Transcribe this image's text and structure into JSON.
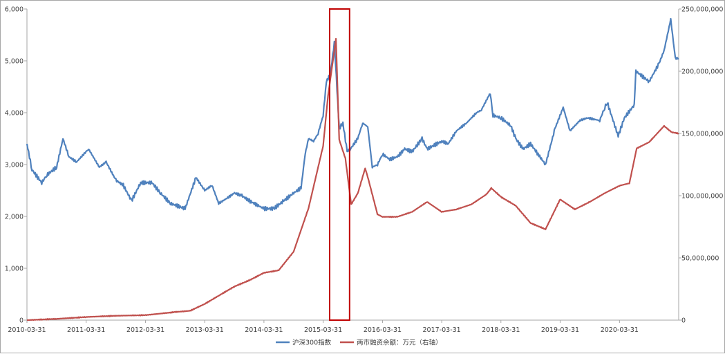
{
  "chart_data": {
    "type": "line",
    "x_ticks": [
      "2010-03-31",
      "2011-03-31",
      "2012-03-31",
      "2013-03-31",
      "2014-03-31",
      "2015-03-31",
      "2016-03-31",
      "2017-03-31",
      "2018-03-31",
      "2019-03-31",
      "2020-03-31"
    ],
    "y_left": {
      "range": [
        0,
        6000
      ],
      "ticks": [
        0,
        1000,
        2000,
        3000,
        4000,
        5000,
        6000
      ],
      "tick_labels": [
        "0",
        "1,000",
        "2,000",
        "3,000",
        "4,000",
        "5,000",
        "6,000"
      ]
    },
    "y_right": {
      "range": [
        0,
        250000000
      ],
      "ticks": [
        0,
        50000000,
        100000000,
        150000000,
        200000000,
        250000000
      ],
      "tick_labels": [
        "0",
        "50,000,000",
        "100,000,000",
        "150,000,000",
        "200,000,000",
        "250,000,000"
      ]
    },
    "series": [
      {
        "name": "沪深300指数",
        "axis": "left",
        "color": "#4f81bd",
        "points": [
          [
            "2010-03-31",
            3400
          ],
          [
            "2010-05-01",
            2900
          ],
          [
            "2010-06-30",
            2650
          ],
          [
            "2010-08-01",
            2800
          ],
          [
            "2010-09-30",
            2950
          ],
          [
            "2010-11-08",
            3500
          ],
          [
            "2010-12-15",
            3150
          ],
          [
            "2011-01-31",
            3050
          ],
          [
            "2011-04-15",
            3300
          ],
          [
            "2011-06-20",
            2950
          ],
          [
            "2011-08-01",
            3050
          ],
          [
            "2011-09-30",
            2700
          ],
          [
            "2011-11-15",
            2600
          ],
          [
            "2012-01-05",
            2300
          ],
          [
            "2012-03-01",
            2650
          ],
          [
            "2012-05-10",
            2650
          ],
          [
            "2012-07-01",
            2450
          ],
          [
            "2012-09-01",
            2250
          ],
          [
            "2012-11-30",
            2150
          ],
          [
            "2013-02-05",
            2750
          ],
          [
            "2013-03-31",
            2500
          ],
          [
            "2013-05-15",
            2600
          ],
          [
            "2013-06-25",
            2250
          ],
          [
            "2013-08-15",
            2350
          ],
          [
            "2013-09-30",
            2450
          ],
          [
            "2013-11-15",
            2400
          ],
          [
            "2013-12-31",
            2300
          ],
          [
            "2014-03-31",
            2150
          ],
          [
            "2014-05-31",
            2150
          ],
          [
            "2014-07-31",
            2300
          ],
          [
            "2014-09-30",
            2450
          ],
          [
            "2014-11-15",
            2550
          ],
          [
            "2014-12-10",
            3200
          ],
          [
            "2014-12-31",
            3500
          ],
          [
            "2015-01-31",
            3450
          ],
          [
            "2015-02-28",
            3600
          ],
          [
            "2015-03-31",
            3950
          ],
          [
            "2015-04-20",
            4600
          ],
          [
            "2015-05-15",
            4750
          ],
          [
            "2015-06-08",
            5350
          ],
          [
            "2015-06-20",
            4700
          ],
          [
            "2015-07-08",
            3700
          ],
          [
            "2015-07-31",
            3800
          ],
          [
            "2015-08-26",
            3250
          ],
          [
            "2015-09-15",
            3300
          ],
          [
            "2015-10-30",
            3500
          ],
          [
            "2015-11-30",
            3800
          ],
          [
            "2015-12-31",
            3730
          ],
          [
            "2016-01-28",
            2950
          ],
          [
            "2016-02-29",
            3000
          ],
          [
            "2016-03-31",
            3200
          ],
          [
            "2016-05-15",
            3100
          ],
          [
            "2016-07-01",
            3150
          ],
          [
            "2016-08-15",
            3300
          ],
          [
            "2016-09-30",
            3250
          ],
          [
            "2016-11-30",
            3500
          ],
          [
            "2016-12-31",
            3300
          ],
          [
            "2017-03-31",
            3450
          ],
          [
            "2017-05-10",
            3400
          ],
          [
            "2017-06-30",
            3650
          ],
          [
            "2017-08-31",
            3800
          ],
          [
            "2017-10-31",
            4000
          ],
          [
            "2017-11-30",
            4050
          ],
          [
            "2018-01-24",
            4380
          ],
          [
            "2018-02-10",
            3950
          ],
          [
            "2018-03-31",
            3900
          ],
          [
            "2018-05-31",
            3750
          ],
          [
            "2018-06-30",
            3500
          ],
          [
            "2018-08-15",
            3300
          ],
          [
            "2018-09-30",
            3400
          ],
          [
            "2018-11-15",
            3200
          ],
          [
            "2018-12-31",
            3000
          ],
          [
            "2019-02-28",
            3700
          ],
          [
            "2019-04-19",
            4100
          ],
          [
            "2019-05-31",
            3650
          ],
          [
            "2019-07-31",
            3850
          ],
          [
            "2019-09-15",
            3900
          ],
          [
            "2019-11-30",
            3850
          ],
          [
            "2019-12-31",
            4100
          ],
          [
            "2020-01-15",
            4200
          ],
          [
            "2020-03-23",
            3550
          ],
          [
            "2020-04-30",
            3900
          ],
          [
            "2020-06-30",
            4150
          ],
          [
            "2020-07-10",
            4800
          ],
          [
            "2020-09-30",
            4600
          ],
          [
            "2020-11-30",
            4950
          ],
          [
            "2020-12-31",
            5200
          ],
          [
            "2021-02-10",
            5800
          ],
          [
            "2021-03-10",
            5050
          ],
          [
            "2021-03-31",
            5050
          ]
        ]
      },
      {
        "name": "两市融资余额：万元（右轴）",
        "axis": "right",
        "color": "#c0504d",
        "points": [
          [
            "2010-03-31",
            0
          ],
          [
            "2010-09-30",
            1000000
          ],
          [
            "2011-03-31",
            2500000
          ],
          [
            "2011-09-30",
            3500000
          ],
          [
            "2012-03-31",
            4000000
          ],
          [
            "2012-09-30",
            6500000
          ],
          [
            "2012-12-31",
            7500000
          ],
          [
            "2013-03-31",
            13000000
          ],
          [
            "2013-06-30",
            20000000
          ],
          [
            "2013-09-30",
            27000000
          ],
          [
            "2013-12-31",
            32000000
          ],
          [
            "2014-03-31",
            38000000
          ],
          [
            "2014-06-30",
            40000000
          ],
          [
            "2014-09-30",
            55000000
          ],
          [
            "2014-12-31",
            90000000
          ],
          [
            "2015-03-31",
            140000000
          ],
          [
            "2015-04-30",
            180000000
          ],
          [
            "2015-06-18",
            226000000
          ],
          [
            "2015-07-08",
            145000000
          ],
          [
            "2015-08-15",
            130000000
          ],
          [
            "2015-09-20",
            93000000
          ],
          [
            "2015-10-31",
            102000000
          ],
          [
            "2015-12-15",
            122000000
          ],
          [
            "2015-12-31",
            115000000
          ],
          [
            "2016-02-29",
            85000000
          ],
          [
            "2016-03-31",
            83000000
          ],
          [
            "2016-06-30",
            83000000
          ],
          [
            "2016-09-30",
            87000000
          ],
          [
            "2016-12-31",
            95000000
          ],
          [
            "2017-03-31",
            87000000
          ],
          [
            "2017-06-30",
            89000000
          ],
          [
            "2017-09-30",
            93000000
          ],
          [
            "2017-12-31",
            101000000
          ],
          [
            "2018-01-31",
            106000000
          ],
          [
            "2018-03-31",
            99000000
          ],
          [
            "2018-06-30",
            92000000
          ],
          [
            "2018-09-30",
            78000000
          ],
          [
            "2018-12-31",
            73000000
          ],
          [
            "2019-03-31",
            97000000
          ],
          [
            "2019-06-30",
            89000000
          ],
          [
            "2019-09-30",
            95000000
          ],
          [
            "2019-12-31",
            102000000
          ],
          [
            "2020-03-31",
            108000000
          ],
          [
            "2020-05-31",
            110000000
          ],
          [
            "2020-07-15",
            138000000
          ],
          [
            "2020-09-30",
            143000000
          ],
          [
            "2020-12-31",
            156000000
          ],
          [
            "2021-02-15",
            151000000
          ],
          [
            "2021-03-31",
            150000000
          ]
        ]
      }
    ],
    "annotation": {
      "type": "highlight-box",
      "x_range": [
        "2015-05-10",
        "2015-09-10"
      ],
      "color": "#c00000"
    },
    "legend_position": "bottom",
    "grid": false
  }
}
